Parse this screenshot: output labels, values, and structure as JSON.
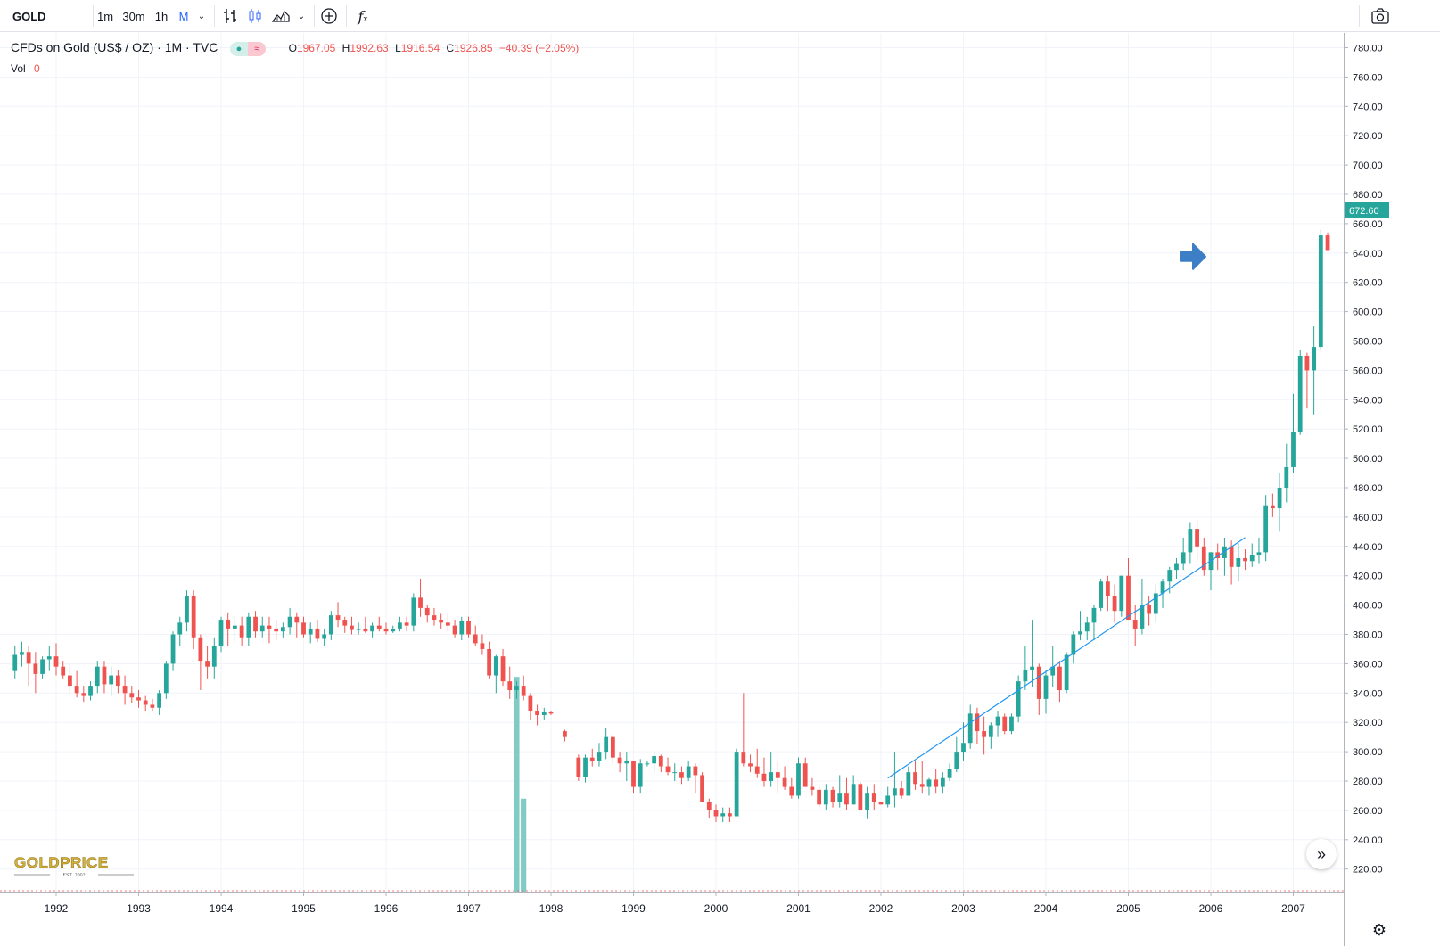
{
  "toolbar": {
    "symbol": "GOLD",
    "intervals": [
      "1m",
      "30m",
      "1h",
      "M"
    ],
    "active_interval": "M"
  },
  "legend": {
    "title": "CFDs on Gold (US$ / OZ) · 1M · TVC",
    "o_label": "O",
    "o_value": "1967.05",
    "h_label": "H",
    "h_value": "1992.63",
    "l_label": "L",
    "l_value": "1916.54",
    "c_label": "C",
    "c_value": "1926.85",
    "change": "−40.39 (−2.05%)",
    "vol_label": "Vol",
    "vol_value": "0"
  },
  "logo": {
    "name": "GOLDPRICE",
    "tagline": "EST. 2002"
  },
  "colors": {
    "up": "#26a69a",
    "down": "#ef5350",
    "trendline": "#2196f3",
    "arrow": "#3d7fc6",
    "price_badge": "#26a69a",
    "volume": "#80cbc4"
  },
  "chart_data": {
    "type": "candlestick",
    "x_labels": [
      "1992",
      "1993",
      "1994",
      "1995",
      "1996",
      "1997",
      "1998",
      "1999",
      "2000",
      "2001",
      "2002",
      "2003",
      "2004",
      "2005",
      "2006",
      "2007"
    ],
    "y_ticks": [
      220,
      240,
      260,
      280,
      300,
      320,
      340,
      360,
      380,
      400,
      420,
      440,
      460,
      480,
      500,
      520,
      540,
      560,
      580,
      600,
      620,
      640,
      660,
      680,
      700,
      720,
      740,
      760,
      780
    ],
    "y_tick_suffix": ".00",
    "ylim": [
      208,
      788
    ],
    "current_price": "672.60",
    "start": "1991-07",
    "months": [
      [
        355,
        372,
        350,
        366
      ],
      [
        366,
        375,
        358,
        368
      ],
      [
        368,
        372,
        345,
        360
      ],
      [
        360,
        368,
        340,
        353
      ],
      [
        353,
        365,
        350,
        363
      ],
      [
        363,
        372,
        355,
        365
      ],
      [
        365,
        374,
        352,
        358
      ],
      [
        358,
        362,
        350,
        352
      ],
      [
        352,
        360,
        340,
        345
      ],
      [
        345,
        355,
        337,
        340
      ],
      [
        340,
        345,
        334,
        338
      ],
      [
        338,
        348,
        335,
        345
      ],
      [
        345,
        362,
        340,
        358
      ],
      [
        358,
        362,
        340,
        346
      ],
      [
        346,
        358,
        338,
        352
      ],
      [
        352,
        356,
        340,
        345
      ],
      [
        345,
        352,
        332,
        340
      ],
      [
        340,
        345,
        333,
        337
      ],
      [
        337,
        342,
        330,
        335
      ],
      [
        335,
        338,
        328,
        332
      ],
      [
        332,
        336,
        328,
        330
      ],
      [
        330,
        342,
        325,
        340
      ],
      [
        340,
        362,
        336,
        360
      ],
      [
        360,
        382,
        355,
        380
      ],
      [
        380,
        392,
        372,
        388
      ],
      [
        388,
        410,
        382,
        406
      ],
      [
        406,
        410,
        370,
        378
      ],
      [
        378,
        380,
        342,
        362
      ],
      [
        362,
        372,
        350,
        358
      ],
      [
        358,
        378,
        350,
        372
      ],
      [
        372,
        392,
        368,
        390
      ],
      [
        390,
        395,
        372,
        384
      ],
      [
        384,
        392,
        375,
        386
      ],
      [
        386,
        392,
        372,
        378
      ],
      [
        378,
        395,
        372,
        392
      ],
      [
        392,
        396,
        378,
        382
      ],
      [
        382,
        392,
        378,
        386
      ],
      [
        386,
        392,
        374,
        384
      ],
      [
        384,
        390,
        376,
        382
      ],
      [
        382,
        388,
        378,
        385
      ],
      [
        385,
        398,
        380,
        392
      ],
      [
        392,
        395,
        378,
        388
      ],
      [
        388,
        392,
        378,
        380
      ],
      [
        380,
        388,
        374,
        384
      ],
      [
        384,
        390,
        375,
        377
      ],
      [
        377,
        384,
        372,
        380
      ],
      [
        380,
        396,
        376,
        393
      ],
      [
        393,
        402,
        385,
        390
      ],
      [
        390,
        392,
        381,
        386
      ],
      [
        386,
        392,
        380,
        383
      ],
      [
        383,
        388,
        380,
        384
      ],
      [
        384,
        392,
        381,
        382
      ],
      [
        382,
        388,
        378,
        386
      ],
      [
        386,
        392,
        382,
        384
      ],
      [
        384,
        388,
        380,
        382
      ],
      [
        382,
        386,
        381,
        384
      ],
      [
        384,
        392,
        382,
        388
      ],
      [
        388,
        392,
        382,
        386
      ],
      [
        386,
        408,
        382,
        405
      ],
      [
        405,
        418,
        392,
        398
      ],
      [
        398,
        400,
        388,
        393
      ],
      [
        393,
        398,
        386,
        390
      ],
      [
        390,
        394,
        384,
        388
      ],
      [
        388,
        394,
        382,
        386
      ],
      [
        386,
        390,
        378,
        380
      ],
      [
        380,
        392,
        376,
        389
      ],
      [
        389,
        392,
        378,
        380
      ],
      [
        380,
        386,
        372,
        374
      ],
      [
        374,
        380,
        366,
        370
      ],
      [
        370,
        375,
        350,
        352
      ],
      [
        352,
        366,
        340,
        365
      ],
      [
        365,
        370,
        345,
        348
      ],
      [
        348,
        358,
        336,
        342
      ],
      [
        342,
        348,
        336,
        345
      ],
      [
        345,
        352,
        335,
        338
      ],
      [
        338,
        340,
        322,
        328
      ],
      [
        328,
        332,
        318,
        325
      ],
      [
        325,
        330,
        322,
        327
      ],
      [
        327,
        328,
        325,
        326
      ],
      [
        null,
        null,
        null,
        null
      ],
      [
        314,
        315,
        307,
        310
      ],
      [
        null,
        null,
        null,
        null
      ],
      [
        296,
        298,
        280,
        283
      ],
      [
        283,
        298,
        279,
        296
      ],
      [
        296,
        302,
        290,
        294
      ],
      [
        294,
        306,
        290,
        300
      ],
      [
        300,
        316,
        295,
        310
      ],
      [
        310,
        312,
        292,
        296
      ],
      [
        296,
        300,
        286,
        292
      ],
      [
        292,
        300,
        280,
        294
      ],
      [
        294,
        294,
        272,
        276
      ],
      [
        276,
        295,
        272,
        292
      ],
      [
        292,
        294,
        290,
        292
      ],
      [
        292,
        300,
        286,
        297
      ],
      [
        297,
        298,
        286,
        290
      ],
      [
        290,
        296,
        284,
        286
      ],
      [
        286,
        292,
        280,
        286
      ],
      [
        286,
        290,
        278,
        282
      ],
      [
        282,
        294,
        280,
        290
      ],
      [
        290,
        292,
        272,
        284
      ],
      [
        284,
        286,
        270,
        266
      ],
      [
        266,
        268,
        255,
        260
      ],
      [
        260,
        264,
        252,
        256
      ],
      [
        256,
        262,
        252,
        258
      ],
      [
        258,
        262,
        252,
        256
      ],
      [
        256,
        302,
        256,
        300
      ],
      [
        300,
        340,
        290,
        292
      ],
      [
        292,
        298,
        286,
        290
      ],
      [
        290,
        302,
        282,
        285
      ],
      [
        285,
        296,
        276,
        280
      ],
      [
        280,
        300,
        276,
        286
      ],
      [
        286,
        294,
        272,
        282
      ],
      [
        282,
        290,
        274,
        276
      ],
      [
        276,
        282,
        268,
        270
      ],
      [
        270,
        296,
        268,
        292
      ],
      [
        292,
        296,
        276,
        276
      ],
      [
        276,
        282,
        270,
        274
      ],
      [
        274,
        276,
        262,
        264
      ],
      [
        264,
        278,
        260,
        274
      ],
      [
        274,
        276,
        262,
        266
      ],
      [
        266,
        284,
        262,
        272
      ],
      [
        272,
        282,
        260,
        264
      ],
      [
        264,
        284,
        264,
        278
      ],
      [
        278,
        279,
        260,
        260
      ],
      [
        260,
        276,
        254,
        272
      ],
      [
        272,
        278,
        260,
        266
      ],
      [
        266,
        266,
        264,
        264
      ],
      [
        264,
        276,
        262,
        270
      ],
      [
        270,
        300,
        262,
        275
      ],
      [
        275,
        280,
        268,
        270
      ],
      [
        270,
        290,
        270,
        286
      ],
      [
        286,
        294,
        274,
        278
      ],
      [
        278,
        294,
        272,
        276
      ],
      [
        276,
        282,
        270,
        281
      ],
      [
        281,
        288,
        272,
        276
      ],
      [
        276,
        286,
        272,
        282
      ],
      [
        282,
        292,
        280,
        288
      ],
      [
        288,
        310,
        286,
        300
      ],
      [
        300,
        320,
        294,
        306
      ],
      [
        306,
        332,
        302,
        326
      ],
      [
        326,
        330,
        305,
        314
      ],
      [
        314,
        324,
        298,
        310
      ],
      [
        310,
        320,
        302,
        318
      ],
      [
        318,
        328,
        310,
        324
      ],
      [
        324,
        326,
        312,
        314
      ],
      [
        314,
        326,
        312,
        324
      ],
      [
        324,
        352,
        320,
        348
      ],
      [
        348,
        372,
        342,
        356
      ],
      [
        356,
        390,
        344,
        358
      ],
      [
        358,
        360,
        325,
        336
      ],
      [
        336,
        356,
        326,
        352
      ],
      [
        352,
        372,
        344,
        358
      ],
      [
        358,
        362,
        334,
        342
      ],
      [
        342,
        368,
        340,
        366
      ],
      [
        366,
        382,
        360,
        380
      ],
      [
        380,
        396,
        376,
        382
      ],
      [
        382,
        392,
        376,
        388
      ],
      [
        388,
        400,
        376,
        398
      ],
      [
        398,
        418,
        396,
        416
      ],
      [
        416,
        420,
        396,
        406
      ],
      [
        406,
        414,
        388,
        396
      ],
      [
        396,
        420,
        392,
        420
      ],
      [
        420,
        432,
        400,
        390
      ],
      [
        390,
        400,
        372,
        384
      ],
      [
        384,
        418,
        380,
        400
      ],
      [
        400,
        406,
        386,
        394
      ],
      [
        394,
        414,
        388,
        408
      ],
      [
        408,
        418,
        398,
        416
      ],
      [
        416,
        426,
        408,
        424
      ],
      [
        424,
        432,
        418,
        428
      ],
      [
        428,
        446,
        424,
        436
      ],
      [
        436,
        456,
        428,
        452
      ],
      [
        452,
        458,
        430,
        440
      ],
      [
        440,
        446,
        420,
        424
      ],
      [
        424,
        436,
        410,
        436
      ],
      [
        436,
        442,
        424,
        432
      ],
      [
        432,
        446,
        420,
        440
      ],
      [
        440,
        444,
        414,
        426
      ],
      [
        426,
        442,
        416,
        432
      ],
      [
        432,
        438,
        424,
        430
      ],
      [
        430,
        442,
        426,
        434
      ],
      [
        434,
        446,
        428,
        436
      ],
      [
        436,
        475,
        430,
        468
      ],
      [
        468,
        476,
        460,
        466
      ],
      [
        466,
        490,
        450,
        480
      ],
      [
        480,
        510,
        470,
        494
      ],
      [
        494,
        544,
        490,
        518
      ],
      [
        518,
        574,
        516,
        570
      ],
      [
        570,
        572,
        534,
        560
      ],
      [
        560,
        590,
        530,
        576
      ],
      [
        576,
        656,
        574,
        652
      ],
      [
        652,
        654,
        642,
        642
      ]
    ],
    "volume_bar": {
      "start": "1997-08",
      "months": 2,
      "values": [
        351,
        268
      ],
      "label": ""
    },
    "trendline": {
      "from": [
        "2002-02",
        282
      ],
      "to": [
        "2006-06",
        446
      ]
    },
    "arrow_marker": {
      "at": "2006-01",
      "price": 640
    }
  }
}
